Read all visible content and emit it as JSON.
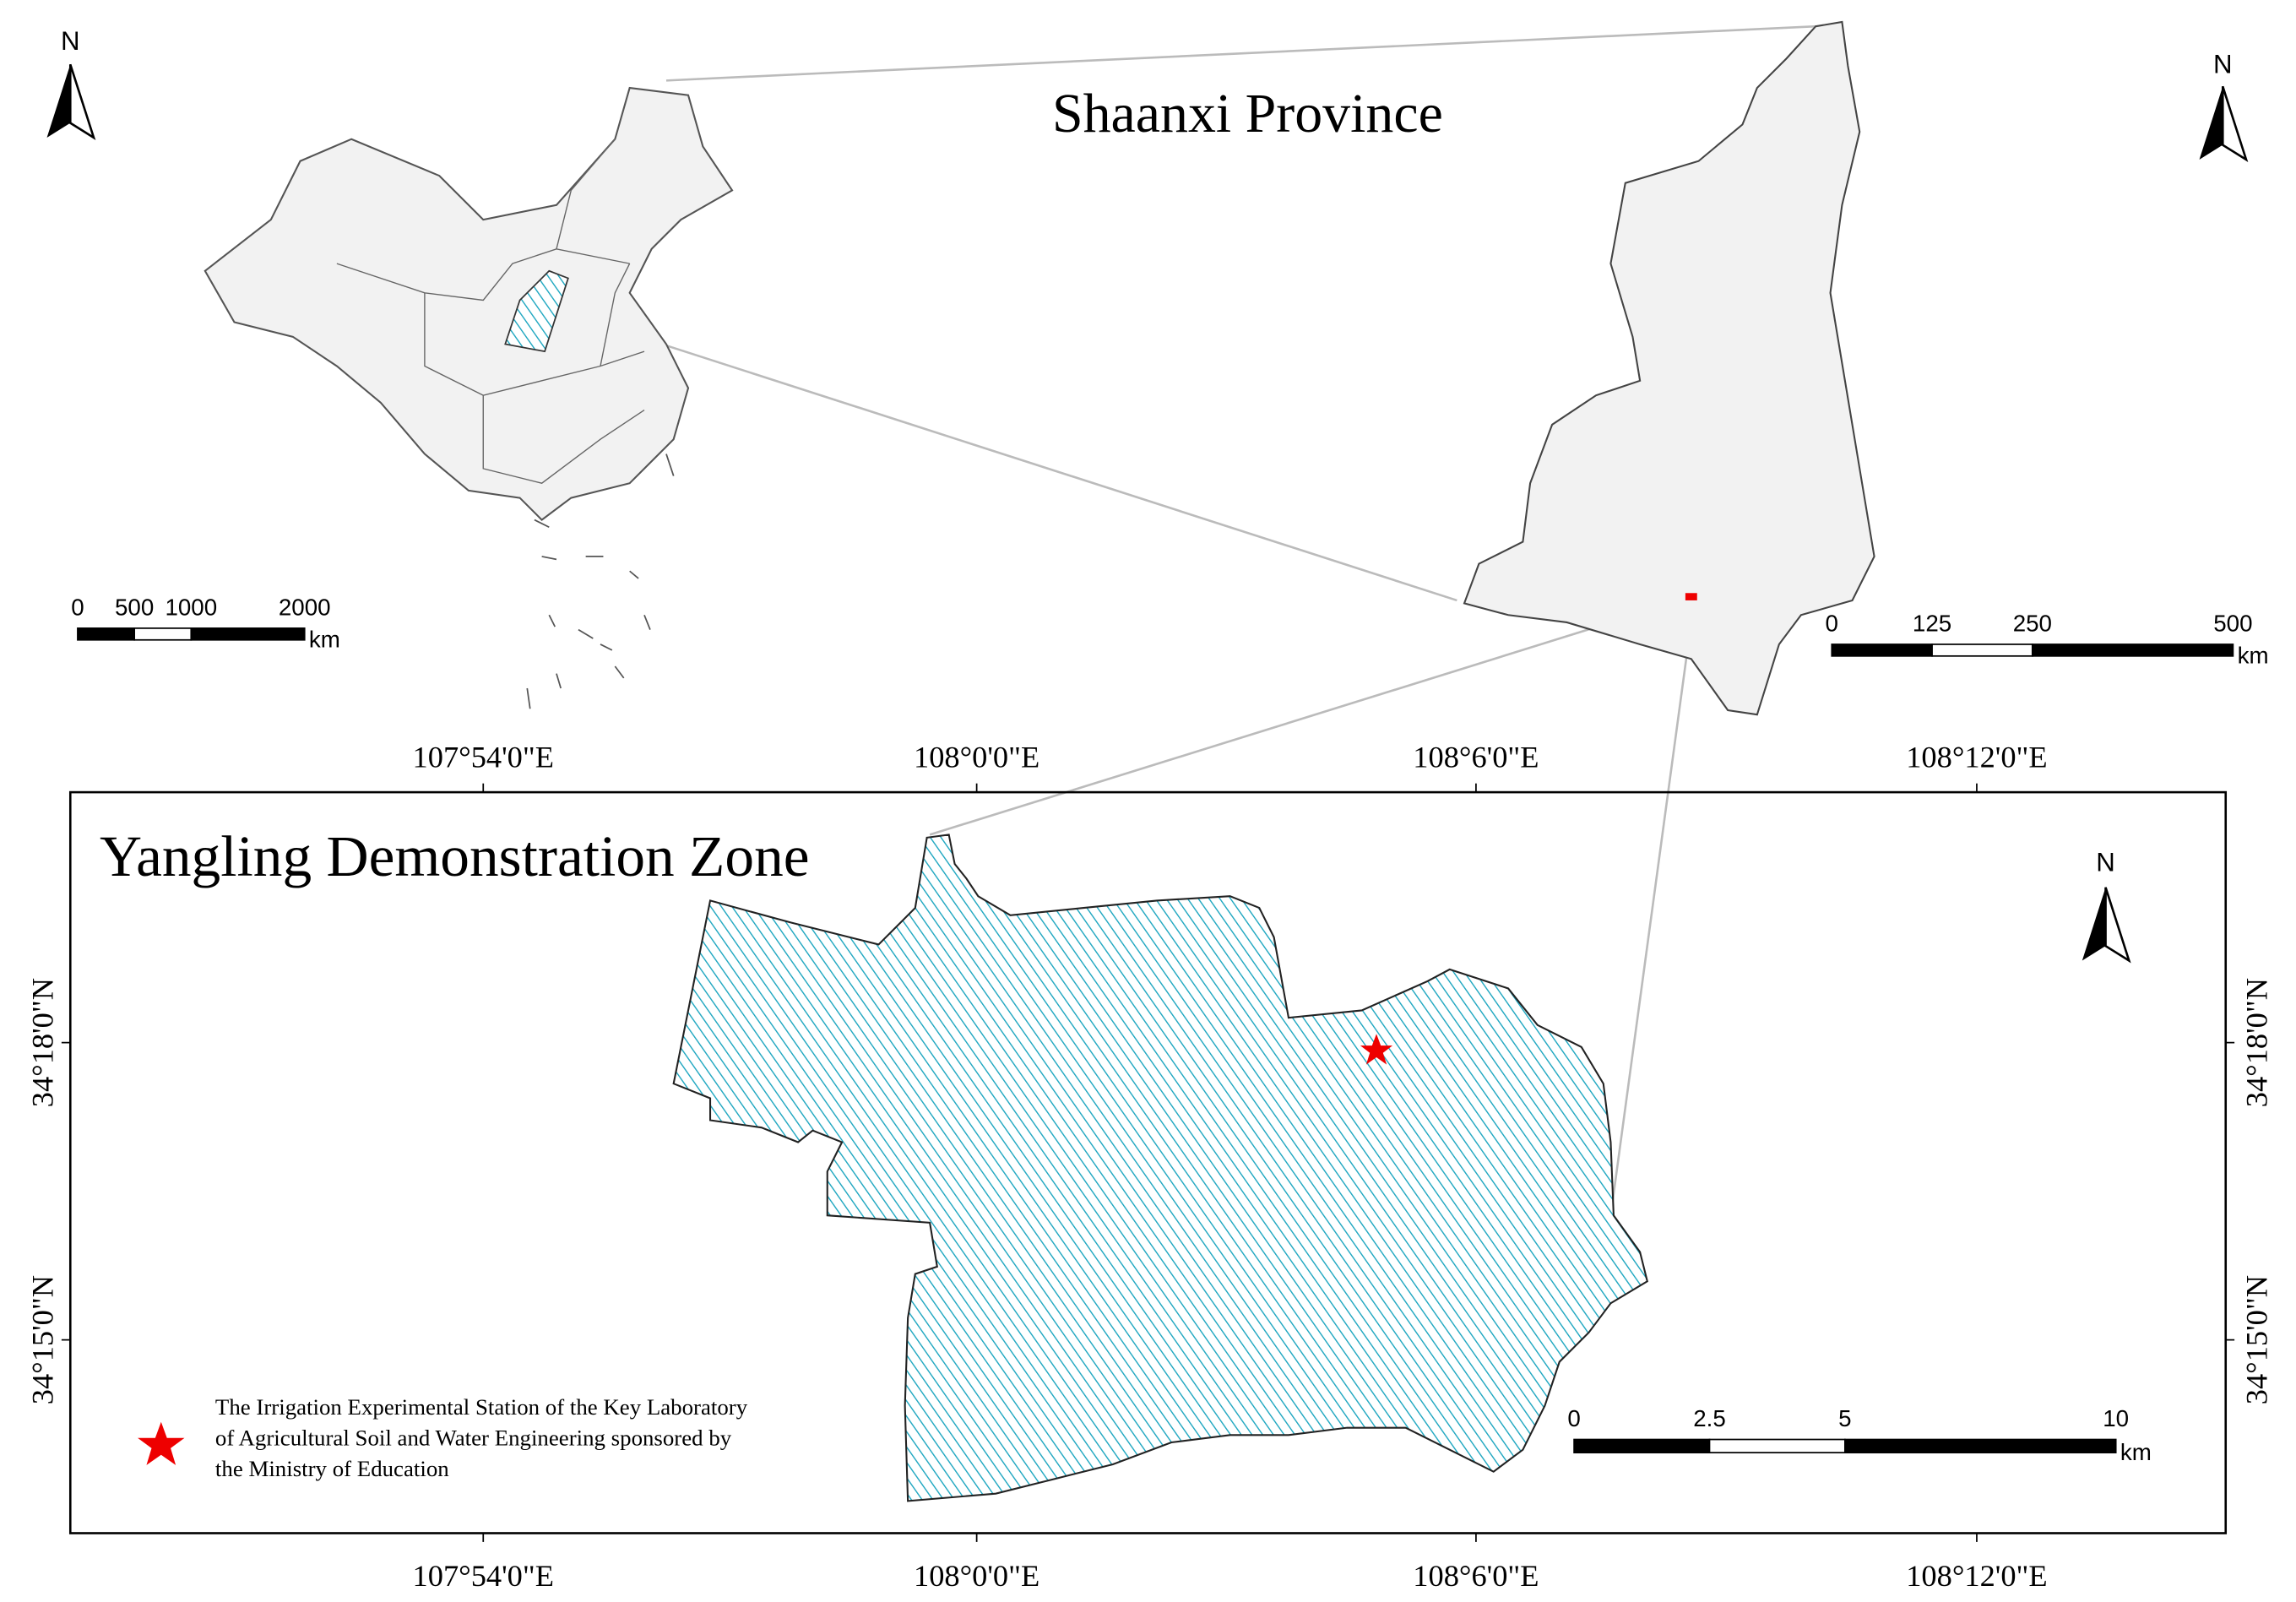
{
  "china_map": {
    "north": "N",
    "scale_labels": [
      0,
      500,
      1000,
      2000
    ],
    "scale_unit": "km"
  },
  "shaanxi_map": {
    "title": "Shaanxi Province",
    "north": "N",
    "scale_labels": [
      0,
      125,
      250,
      500
    ],
    "scale_unit": "km"
  },
  "yangling_map": {
    "title": "Yangling Demonstration Zone",
    "north": "N",
    "scale_labels": [
      0,
      2.5,
      5,
      10
    ],
    "scale_unit": "km",
    "x_labels": [
      "107°54'0\"E",
      "108°0'0\"E",
      "108°6'0\"E",
      "108°12'0\"E"
    ],
    "y_labels": [
      "34°18'0\"N",
      "34°15'0\"N"
    ],
    "legend": [
      "The Irrigation Experimental Station of the Key Laboratory",
      "of Agricultural Soil and Water Engineering sponsored by",
      "the Ministry of Education"
    ]
  }
}
